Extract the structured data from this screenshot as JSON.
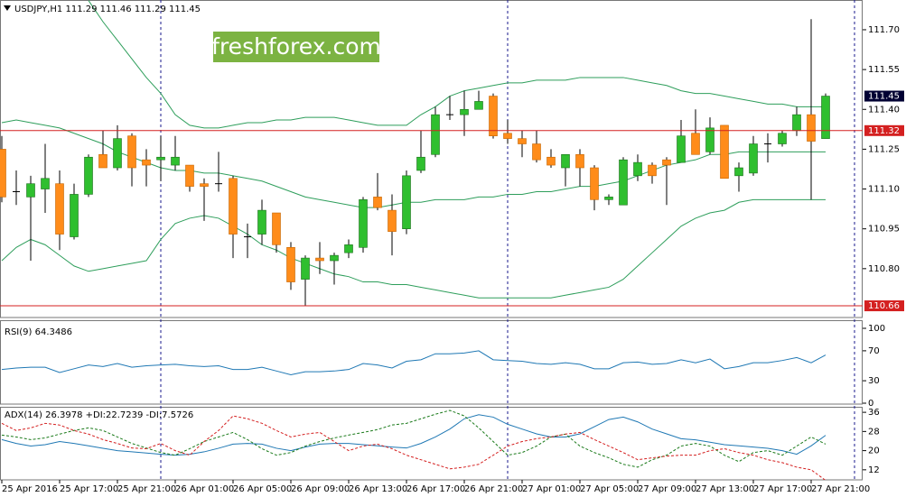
{
  "chart_data": [
    {
      "type": "candlestick",
      "title": "USDJPY,H1  111.29 111.46 111.29 111.45",
      "watermark": "freshforex.com",
      "categories": [
        "25 Apr 2016",
        null,
        null,
        null,
        "25 Apr 17:00",
        null,
        null,
        null,
        "25 Apr 21:00",
        null,
        null,
        null,
        "26 Apr 01:00",
        null,
        null,
        null,
        "26 Apr 05:00",
        null,
        null,
        null,
        "26 Apr 09:00",
        null,
        null,
        null,
        "26 Apr 13:00",
        null,
        null,
        null,
        "26 Apr 17:00",
        null,
        null,
        null,
        "26 Apr 21:00",
        null,
        null,
        null,
        "27 Apr 01:00",
        null,
        null,
        null,
        "27 Apr 05:00",
        null,
        null,
        null,
        "27 Apr 09:00",
        null,
        null,
        null,
        "27 Apr 13:00",
        null,
        null,
        null,
        "27 Apr 17:00",
        null,
        null,
        null,
        "27 Apr 21:00",
        null
      ],
      "open": [
        111.25,
        111.09,
        111.07,
        111.1,
        111.12,
        110.92,
        111.08,
        111.23,
        111.18,
        111.3,
        111.21,
        111.21,
        111.19,
        111.19,
        111.12,
        111.12,
        111.14,
        110.92,
        110.93,
        111.01,
        110.88,
        110.76,
        110.84,
        110.83,
        110.86,
        110.88,
        111.07,
        111.02,
        110.95,
        111.17,
        111.23,
        111.38,
        111.38,
        111.4,
        111.45,
        111.31,
        111.29,
        111.27,
        111.22,
        111.18,
        111.23,
        111.18,
        111.06,
        111.04,
        111.15,
        111.19,
        111.21,
        111.2,
        111.31,
        111.24,
        111.34,
        111.15,
        111.16,
        111.27,
        111.27,
        111.32,
        111.38,
        111.29
      ],
      "high": [
        111.3,
        111.17,
        111.15,
        111.27,
        111.17,
        111.12,
        111.23,
        111.32,
        111.34,
        111.31,
        111.25,
        111.3,
        111.3,
        111.19,
        111.14,
        111.24,
        111.15,
        110.97,
        111.06,
        111.01,
        110.9,
        110.85,
        110.9,
        110.86,
        110.91,
        111.07,
        111.16,
        111.08,
        111.17,
        111.32,
        111.41,
        111.45,
        111.47,
        111.47,
        111.46,
        111.36,
        111.32,
        111.32,
        111.25,
        111.23,
        111.25,
        111.19,
        111.08,
        111.22,
        111.23,
        111.2,
        111.22,
        111.36,
        111.4,
        111.37,
        111.34,
        111.2,
        111.3,
        111.31,
        111.32,
        111.41,
        111.74,
        111.46
      ],
      "low": [
        111.05,
        111.04,
        110.83,
        111.01,
        110.87,
        110.91,
        111.07,
        111.18,
        111.17,
        111.11,
        111.11,
        111.13,
        111.17,
        111.09,
        110.98,
        111.09,
        110.84,
        110.84,
        110.89,
        110.86,
        110.72,
        110.66,
        110.78,
        110.74,
        110.84,
        110.86,
        111.02,
        110.85,
        110.93,
        111.16,
        111.22,
        111.36,
        111.3,
        111.4,
        111.29,
        111.27,
        111.22,
        111.2,
        111.18,
        111.11,
        111.11,
        111.02,
        111.04,
        111.04,
        111.13,
        111.12,
        111.04,
        111.2,
        111.23,
        111.23,
        111.14,
        111.09,
        111.15,
        111.2,
        111.26,
        111.3,
        111.06,
        111.29
      ],
      "close": [
        111.07,
        111.09,
        111.12,
        111.14,
        110.93,
        111.08,
        111.22,
        111.18,
        111.29,
        111.18,
        111.19,
        111.22,
        111.22,
        111.11,
        111.11,
        111.12,
        110.93,
        110.92,
        111.02,
        110.89,
        110.75,
        110.84,
        110.83,
        110.85,
        110.89,
        111.06,
        111.03,
        110.94,
        111.15,
        111.22,
        111.38,
        111.38,
        111.4,
        111.43,
        111.3,
        111.29,
        111.27,
        111.21,
        111.19,
        111.23,
        111.18,
        111.06,
        111.07,
        111.21,
        111.2,
        111.15,
        111.19,
        111.3,
        111.23,
        111.33,
        111.14,
        111.18,
        111.27,
        111.27,
        111.31,
        111.38,
        111.28,
        111.45
      ],
      "bull_color": "#2fbf2f",
      "bear_color": "#ff8c1a",
      "bands": {
        "color": "#2e9e5b",
        "upper": [
          null,
          null,
          null,
          null,
          null,
          null,
          111.81,
          111.73,
          111.66,
          111.59,
          111.52,
          111.46,
          111.38,
          111.34,
          111.33,
          111.33,
          111.34,
          111.35,
          111.35,
          111.36,
          111.36,
          111.37,
          111.37,
          111.37,
          111.36,
          111.35,
          111.34,
          111.34,
          111.34,
          111.38,
          111.41,
          111.45,
          111.47,
          111.48,
          111.49,
          111.5,
          111.5,
          111.51,
          111.51,
          111.51,
          111.52,
          111.52,
          111.52,
          111.52,
          111.51,
          111.5,
          111.49,
          111.47,
          111.46,
          111.46,
          111.45,
          111.44,
          111.43,
          111.42,
          111.42,
          111.41,
          111.41,
          111.41
        ],
        "middle": [
          111.35,
          111.36,
          111.35,
          111.34,
          111.33,
          111.31,
          111.29,
          111.27,
          111.24,
          111.22,
          111.2,
          111.18,
          111.17,
          111.17,
          111.16,
          111.16,
          111.15,
          111.14,
          111.13,
          111.11,
          111.09,
          111.07,
          111.06,
          111.05,
          111.04,
          111.03,
          111.03,
          111.04,
          111.05,
          111.05,
          111.06,
          111.06,
          111.06,
          111.07,
          111.07,
          111.08,
          111.08,
          111.09,
          111.09,
          111.1,
          111.11,
          111.11,
          111.12,
          111.13,
          111.15,
          111.17,
          111.19,
          111.2,
          111.21,
          111.23,
          111.23,
          111.24,
          111.24,
          111.24,
          111.24,
          111.24,
          111.24,
          111.24
        ],
        "lower": [
          110.83,
          110.88,
          110.91,
          110.89,
          110.85,
          110.81,
          110.79,
          110.8,
          110.81,
          110.82,
          110.83,
          110.91,
          110.97,
          110.99,
          111.0,
          110.99,
          110.96,
          110.93,
          110.89,
          110.87,
          110.84,
          110.82,
          110.8,
          110.78,
          110.77,
          110.75,
          110.75,
          110.74,
          110.74,
          110.73,
          110.72,
          110.71,
          110.7,
          110.69,
          110.69,
          110.69,
          110.69,
          110.69,
          110.69,
          110.7,
          110.71,
          110.72,
          110.73,
          110.76,
          110.81,
          110.86,
          110.91,
          110.96,
          110.99,
          111.01,
          111.02,
          111.05,
          111.06,
          111.06,
          111.06,
          111.06,
          111.06,
          111.06
        ]
      },
      "levels": [
        111.32,
        110.66
      ],
      "level_color": "#d42020",
      "ylim": [
        110.616,
        111.812
      ],
      "yticks": [
        {
          "value": 110.8,
          "label": "110.80"
        },
        110.95,
        {
          "value": 111.1,
          "label": "111.10"
        },
        111.25,
        {
          "value": 111.4,
          "label": "111.40"
        },
        111.55,
        {
          "value": 111.7,
          "label": "111.70"
        }
      ]
    },
    {
      "type": "line",
      "title": "RSI(9) 64.3486",
      "series": [
        {
          "color": "#1f78b4",
          "values": [
            45,
            47,
            48,
            48,
            41,
            46,
            51,
            49,
            53,
            48,
            50,
            51,
            52,
            50,
            49,
            50,
            45,
            45,
            48,
            43,
            38,
            42,
            42,
            43,
            45,
            53,
            51,
            47,
            56,
            58,
            66,
            66,
            67,
            70,
            58,
            57,
            56,
            53,
            52,
            54,
            52,
            46,
            46,
            54,
            55,
            52,
            53,
            58,
            54,
            59,
            46,
            49,
            54,
            54,
            57,
            61,
            54,
            64.3486
          ]
        }
      ],
      "ylim": [
        0,
        100
      ],
      "yticks": [
        0,
        30,
        70,
        100
      ]
    },
    {
      "type": "line",
      "title": "ADX(14) 26.3978 +DI:22.7239 -DI:7.5726",
      "series": [
        {
          "color": "#1f78b4",
          "dashed": false,
          "values": [
            24.6,
            23,
            21.9,
            22.5,
            23.8,
            23,
            22,
            21,
            20,
            19.5,
            19,
            18.5,
            18.1,
            18.5,
            19.5,
            21,
            22.7,
            23,
            22.7,
            21,
            20,
            21.5,
            22.7,
            23,
            23,
            22.5,
            22,
            21.5,
            21.1,
            23,
            25.7,
            29,
            33.3,
            35,
            34,
            31,
            29,
            27,
            25.7,
            25.7,
            27,
            30,
            33,
            34,
            32,
            29,
            27,
            25,
            24.5,
            23.5,
            22.5,
            22,
            21.5,
            21,
            20,
            18.5,
            22,
            26.3978
          ]
        },
        {
          "color": "#1a7a1a",
          "dashed": true,
          "values": [
            26.5,
            25.7,
            24.6,
            25.3,
            26.9,
            28.4,
            29.5,
            28.4,
            25.7,
            23,
            21.1,
            19.2,
            18.1,
            20.8,
            23.8,
            25.7,
            27.6,
            24.6,
            20.8,
            18.1,
            19.2,
            21.9,
            23.8,
            25.3,
            26.5,
            27.6,
            28.8,
            30.7,
            31.4,
            33.3,
            35.2,
            36.8,
            34.5,
            29.5,
            23.8,
            18.1,
            19.2,
            21.9,
            25.7,
            26.9,
            21.9,
            19.2,
            17,
            14.3,
            13.1,
            16.2,
            18.1,
            21.9,
            23,
            21.9,
            18.1,
            15.4,
            19.2,
            20,
            18.1,
            21.9,
            25.7,
            22.7239
          ]
        },
        {
          "color": "#d42020",
          "dashed": true,
          "values": [
            31.4,
            28.4,
            29.5,
            31.4,
            30.7,
            28.4,
            26.9,
            24.6,
            23,
            21.1,
            20.8,
            23,
            20,
            18.1,
            23.8,
            28.4,
            34.5,
            33.3,
            31.4,
            28.4,
            25.7,
            26.9,
            27.6,
            23.8,
            20,
            21.9,
            22.7,
            20.8,
            18.1,
            16.2,
            14.3,
            12.4,
            13.1,
            14.3,
            18.1,
            21.9,
            23.8,
            25,
            25.7,
            26.9,
            27.6,
            24.6,
            21.9,
            19.2,
            16.2,
            17,
            17.7,
            18.1,
            18.1,
            20,
            20.8,
            19.2,
            18.1,
            16.2,
            15,
            13.1,
            12,
            7.5726
          ]
        }
      ],
      "ylim": [
        7.8,
        38.3
      ],
      "yticks": [
        12,
        20,
        28,
        36
      ]
    }
  ]
}
